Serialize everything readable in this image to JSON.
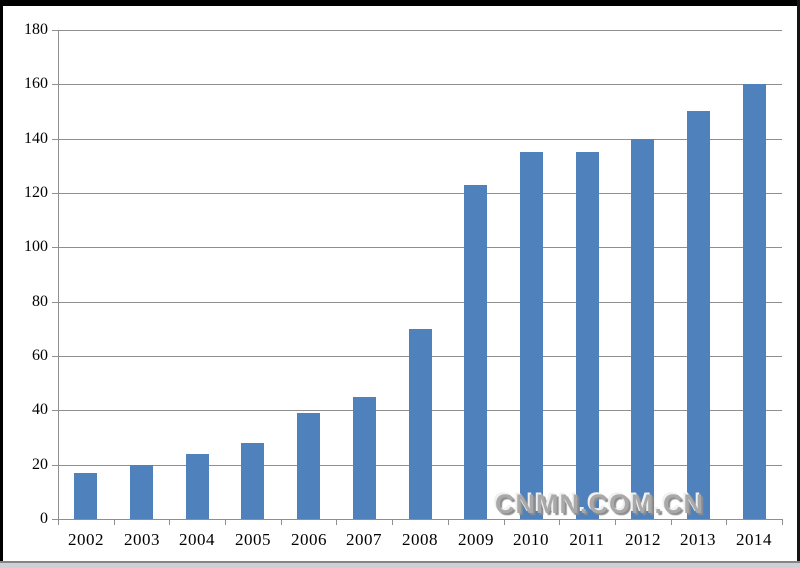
{
  "watermark": {
    "text": "CNMN.COM.CN"
  },
  "chart_data": {
    "type": "bar",
    "title": "",
    "xlabel": "",
    "ylabel": "",
    "categories": [
      "2002",
      "2003",
      "2004",
      "2005",
      "2006",
      "2007",
      "2008",
      "2009",
      "2010",
      "2011",
      "2012",
      "2013",
      "2014"
    ],
    "values": [
      17,
      20,
      24,
      28,
      39,
      45,
      70,
      123,
      135,
      135,
      140,
      150,
      160
    ],
    "ylim": [
      0,
      180
    ],
    "y_ticks": [
      0,
      20,
      40,
      60,
      80,
      100,
      120,
      140,
      160,
      180
    ],
    "grid": "horizontal-only",
    "legend": "none",
    "bar_color": "#4f81bd",
    "gridline_color": "#8f8f8f",
    "axis_color": "#8f8f8f",
    "label_color": "#000000",
    "watermark_color": "#a9a9a9"
  }
}
